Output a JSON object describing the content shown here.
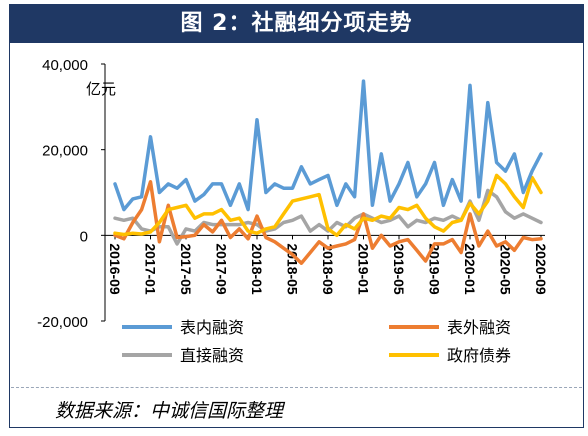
{
  "title": "图 2：社融细分项走势",
  "source": "数据来源：中诚信国际整理",
  "colors": {
    "frame": "#1f3864",
    "on_balance": "#5b9bd5",
    "off_balance": "#ed7d31",
    "direct": "#a5a5a5",
    "gov_bond": "#ffc000"
  },
  "chart_data": {
    "type": "line",
    "ylabel": "亿元",
    "ylim": [
      -20000,
      40000
    ],
    "yticks": [
      -20000,
      0,
      20000,
      40000
    ],
    "ytick_labels": [
      "-20,000",
      "0",
      "20,000",
      "40,000"
    ],
    "x": [
      "2016-09",
      "2016-10",
      "2016-11",
      "2016-12",
      "2017-01",
      "2017-02",
      "2017-03",
      "2017-04",
      "2017-05",
      "2017-06",
      "2017-07",
      "2017-08",
      "2017-09",
      "2017-10",
      "2017-11",
      "2017-12",
      "2018-01",
      "2018-02",
      "2018-03",
      "2018-04",
      "2018-05",
      "2018-06",
      "2018-07",
      "2018-08",
      "2018-09",
      "2018-10",
      "2018-11",
      "2018-12",
      "2019-01",
      "2019-02",
      "2019-03",
      "2019-04",
      "2019-05",
      "2019-06",
      "2019-07",
      "2019-08",
      "2019-09",
      "2019-10",
      "2019-11",
      "2019-12",
      "2020-01",
      "2020-02",
      "2020-03",
      "2020-04",
      "2020-05",
      "2020-06",
      "2020-07",
      "2020-08",
      "2020-09"
    ],
    "xtick_labels": [
      "2016-09",
      "2017-01",
      "2017-05",
      "2017-09",
      "2018-01",
      "2018-05",
      "2018-09",
      "2019-01",
      "2019-05",
      "2019-09",
      "2020-01",
      "2020-05",
      "2020-09"
    ],
    "series": [
      {
        "name": "表内融资",
        "color_key": "on_balance",
        "values": [
          12000,
          6000,
          8500,
          9000,
          23000,
          10000,
          12000,
          11000,
          13000,
          8000,
          9500,
          12000,
          12000,
          7000,
          12000,
          6000,
          27000,
          10000,
          12000,
          11000,
          11000,
          16000,
          12000,
          13000,
          14000,
          7000,
          12000,
          9000,
          36000,
          7000,
          19000,
          8000,
          12000,
          17000,
          9000,
          12000,
          17000,
          7000,
          13000,
          8000,
          35000,
          9000,
          31000,
          17000,
          15000,
          19000,
          10000,
          15000,
          19000
        ]
      },
      {
        "name": "表外融资",
        "color_key": "off_balance",
        "values": [
          0,
          -800,
          3000,
          6000,
          12500,
          -1500,
          7000,
          -500,
          -300,
          0,
          2500,
          800,
          3500,
          -500,
          1500,
          -800,
          4500,
          -500,
          -1500,
          -3000,
          -4500,
          -6500,
          -4000,
          -1500,
          -3000,
          -2500,
          -2000,
          -1000,
          5000,
          -3000,
          0,
          -2500,
          -1500,
          -1000,
          -3500,
          -6000,
          -2000,
          -2000,
          -1000,
          -4000,
          5000,
          -2500,
          1000,
          -2500,
          -1500,
          -3500,
          -500,
          -1000,
          -800
        ]
      },
      {
        "name": "直接融资",
        "color_key": "direct",
        "values": [
          4000,
          3500,
          4000,
          1500,
          1000,
          2000,
          2000,
          -2000,
          1500,
          1000,
          3000,
          2500,
          2500,
          2500,
          2500,
          3000,
          2500,
          1000,
          1500,
          3000,
          3500,
          4500,
          1000,
          2500,
          1000,
          3000,
          2000,
          4000,
          5000,
          4000,
          3000,
          3500,
          4500,
          2000,
          3500,
          3000,
          4000,
          3500,
          4500,
          3500,
          8000,
          3500,
          10500,
          9000,
          5500,
          4000,
          5000,
          4000,
          3000
        ]
      },
      {
        "name": "政府债券",
        "color_key": "gov_bond",
        "values": [
          500,
          200,
          500,
          300,
          800,
          3000,
          6000,
          6500,
          7000,
          4000,
          5000,
          5000,
          6000,
          3500,
          4000,
          1000,
          500,
          1500,
          2000,
          5000,
          8000,
          8500,
          9000,
          9500,
          1500,
          0,
          2500,
          1500,
          4000,
          3500,
          4500,
          4000,
          6500,
          6000,
          7000,
          4000,
          2000,
          1000,
          3000,
          3500,
          7500,
          5000,
          8000,
          14000,
          12000,
          9000,
          6500,
          13500,
          10000
        ]
      }
    ]
  }
}
